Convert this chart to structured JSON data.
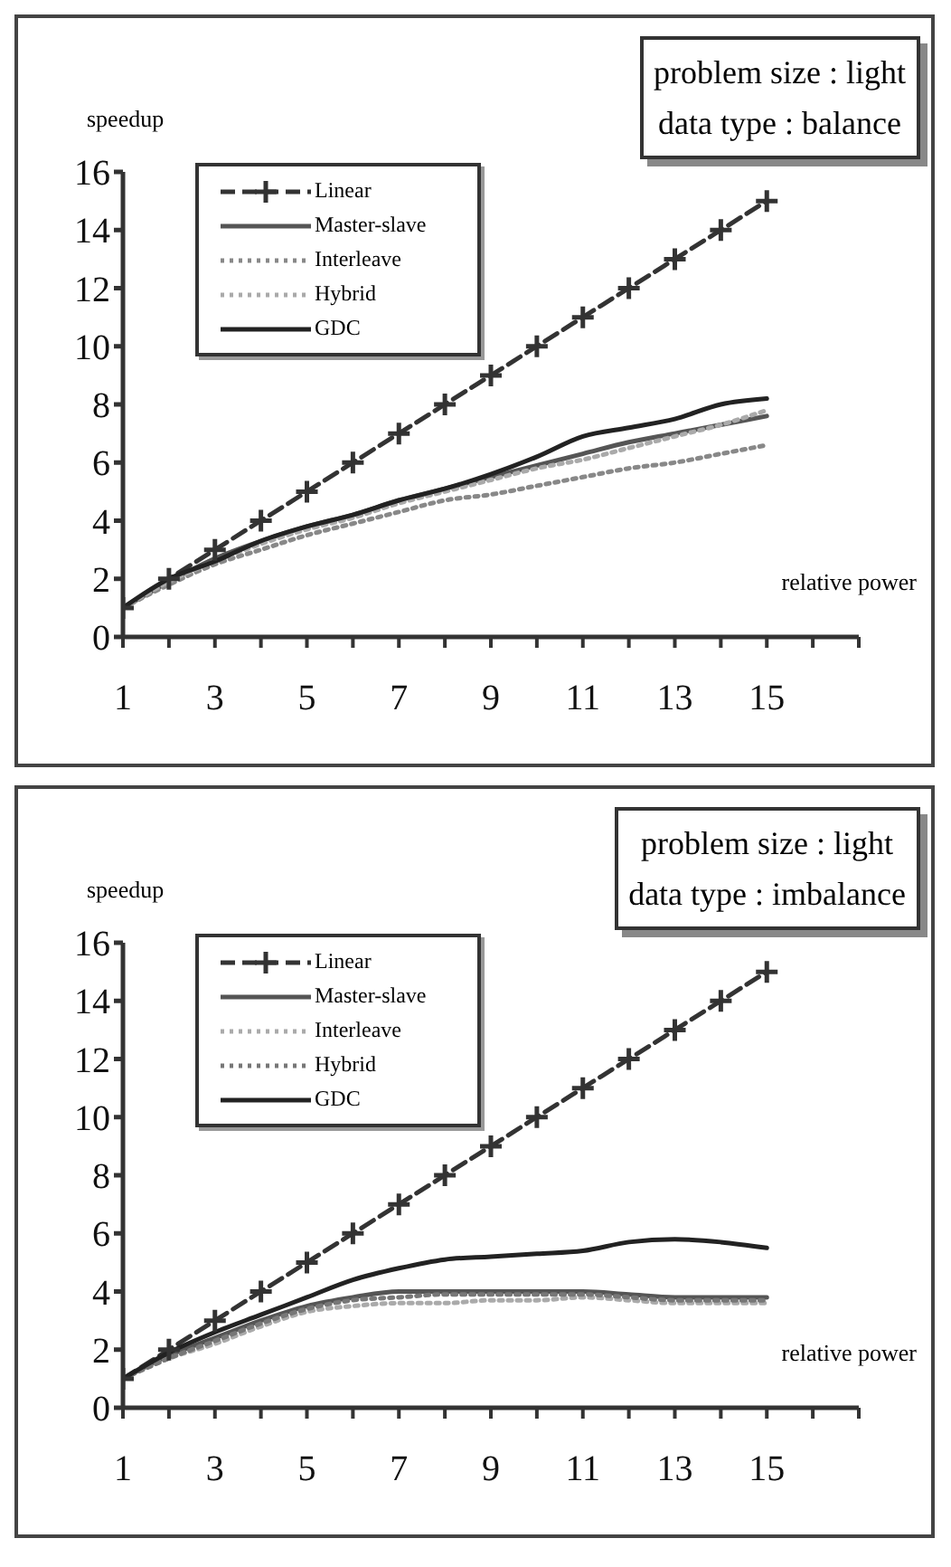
{
  "chart_data": [
    {
      "type": "line",
      "xlabel": "relative power",
      "ylabel": "speedup",
      "annotations": [
        "problem size : light",
        "data type : balance"
      ],
      "x": [
        1,
        2,
        3,
        4,
        5,
        6,
        7,
        8,
        9,
        10,
        11,
        12,
        13,
        14,
        15
      ],
      "xlim": [
        1,
        17
      ],
      "xticks": [
        1,
        {
          "value": 2,
          "label": null
        },
        3,
        {
          "value": 4,
          "label": null
        },
        5,
        {
          "value": 6,
          "label": null
        },
        7,
        {
          "value": 8,
          "label": null
        },
        9,
        {
          "value": 10,
          "label": null
        },
        11,
        {
          "value": 12,
          "label": null
        },
        13,
        {
          "value": 14,
          "label": null
        },
        15,
        {
          "value": 16,
          "label": null
        },
        {
          "value": 17,
          "label": null
        }
      ],
      "ylim": [
        0,
        16
      ],
      "yticks": [
        0,
        2,
        4,
        6,
        8,
        10,
        12,
        14,
        16
      ],
      "grid": false,
      "legend": "top left",
      "series": [
        {
          "name": "Linear",
          "color": "#333333",
          "line_style": "dashed",
          "marker": "cross",
          "values": [
            1,
            2,
            3,
            4,
            5,
            6,
            7,
            8,
            9,
            10,
            11,
            12,
            13,
            14,
            15
          ]
        },
        {
          "name": "Master-slave",
          "color": "#555555",
          "line_style": "solid",
          "marker": "none",
          "values": [
            1,
            1.9,
            2.7,
            3.3,
            3.8,
            4.2,
            4.7,
            5.1,
            5.5,
            5.9,
            6.3,
            6.7,
            7.0,
            7.3,
            7.6
          ]
        },
        {
          "name": "Interleave",
          "color": "#888888",
          "line_style": "dotted",
          "marker": "none",
          "values": [
            1,
            1.8,
            2.5,
            3.0,
            3.5,
            3.9,
            4.3,
            4.7,
            4.9,
            5.2,
            5.5,
            5.8,
            6.0,
            6.3,
            6.6
          ]
        },
        {
          "name": "Hybrid",
          "color": "#aaaaaa",
          "line_style": "dotted",
          "marker": "none",
          "values": [
            1,
            1.9,
            2.6,
            3.2,
            3.7,
            4.1,
            4.6,
            5.0,
            5.4,
            5.8,
            6.1,
            6.5,
            6.9,
            7.3,
            7.8
          ]
        },
        {
          "name": "GDC",
          "color": "#222222",
          "line_style": "solid",
          "marker": "none",
          "values": [
            1,
            2,
            2.6,
            3.3,
            3.8,
            4.2,
            4.7,
            5.1,
            5.6,
            6.2,
            6.9,
            7.2,
            7.5,
            8.0,
            8.2
          ]
        }
      ]
    },
    {
      "type": "line",
      "xlabel": "relative power",
      "ylabel": "speedup",
      "annotations": [
        "problem size : light",
        "data type : imbalance"
      ],
      "x": [
        1,
        2,
        3,
        4,
        5,
        6,
        7,
        8,
        9,
        10,
        11,
        12,
        13,
        14,
        15
      ],
      "xlim": [
        1,
        17
      ],
      "xticks": [
        1,
        {
          "value": 2,
          "label": null
        },
        3,
        {
          "value": 4,
          "label": null
        },
        5,
        {
          "value": 6,
          "label": null
        },
        7,
        {
          "value": 8,
          "label": null
        },
        9,
        {
          "value": 10,
          "label": null
        },
        11,
        {
          "value": 12,
          "label": null
        },
        13,
        {
          "value": 14,
          "label": null
        },
        15,
        {
          "value": 16,
          "label": null
        },
        {
          "value": 17,
          "label": null
        }
      ],
      "ylim": [
        0,
        16
      ],
      "yticks": [
        0,
        2,
        4,
        6,
        8,
        10,
        12,
        14,
        16
      ],
      "grid": false,
      "legend": "top left",
      "series": [
        {
          "name": "Linear",
          "color": "#333333",
          "line_style": "dashed",
          "marker": "cross",
          "values": [
            1,
            2,
            3,
            4,
            5,
            6,
            7,
            8,
            9,
            10,
            11,
            12,
            13,
            14,
            15
          ]
        },
        {
          "name": "Master-slave",
          "color": "#555555",
          "line_style": "solid",
          "marker": "none",
          "values": [
            1,
            1.8,
            2.4,
            3.0,
            3.5,
            3.8,
            4.0,
            4.0,
            4.0,
            4.0,
            4.0,
            3.9,
            3.8,
            3.8,
            3.8
          ]
        },
        {
          "name": "Interleave",
          "color": "#aaaaaa",
          "line_style": "dotted",
          "marker": "none",
          "values": [
            1,
            1.7,
            2.2,
            2.8,
            3.3,
            3.5,
            3.6,
            3.6,
            3.7,
            3.7,
            3.8,
            3.7,
            3.6,
            3.6,
            3.6
          ]
        },
        {
          "name": "Hybrid",
          "color": "#777777",
          "line_style": "dotted",
          "marker": "none",
          "values": [
            1,
            1.7,
            2.3,
            2.9,
            3.4,
            3.7,
            3.8,
            3.9,
            3.9,
            3.9,
            3.9,
            3.8,
            3.7,
            3.7,
            3.7
          ]
        },
        {
          "name": "GDC",
          "color": "#222222",
          "line_style": "solid",
          "marker": "none",
          "values": [
            1,
            1.9,
            2.6,
            3.2,
            3.8,
            4.4,
            4.8,
            5.1,
            5.2,
            5.3,
            5.4,
            5.7,
            5.8,
            5.7,
            5.5
          ]
        }
      ]
    }
  ]
}
